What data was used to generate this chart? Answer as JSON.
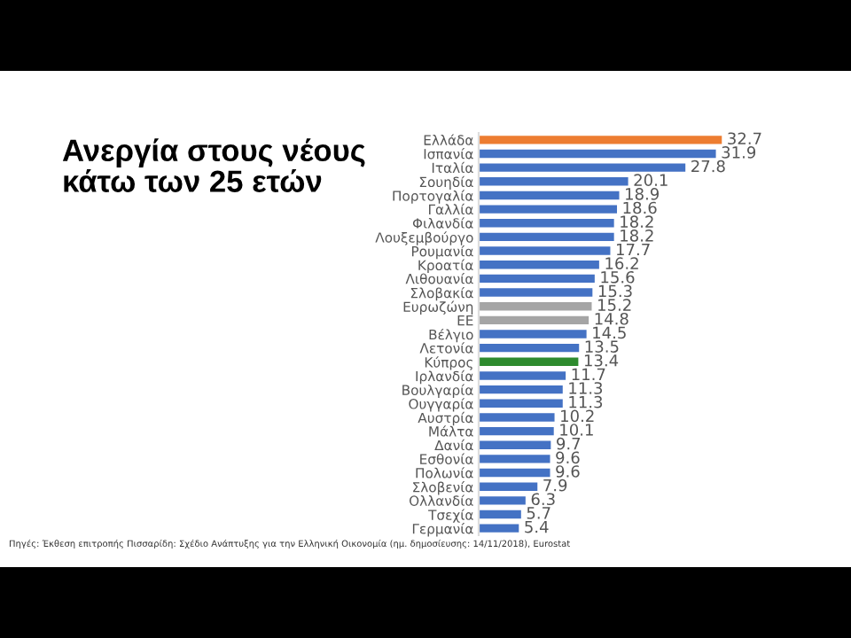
{
  "chart_data": {
    "type": "bar",
    "orientation": "horizontal",
    "title": "Ανεργία στους νέους\nκάτω των 25 ετών",
    "categories": [
      "Ελλάδα",
      "Ισπανία",
      "Ιταλία",
      "Σουηδία",
      "Πορτογαλία",
      "Γαλλία",
      "Φιλανδία",
      "Λουξεμβούργο",
      "Ρουμανία",
      "Κροατία",
      "Λιθουανία",
      "Σλοβακία",
      "Ευρωζώνη",
      "ΕΕ",
      "Βέλγιο",
      "Λετονία",
      "Κύπρος",
      "Ιρλανδία",
      "Βουλγαρία",
      "Ουγγαρία",
      "Αυστρία",
      "Μάλτα",
      "Δανία",
      "Εσθονία",
      "Πολωνία",
      "Σλοβενία",
      "Ολλανδία",
      "Τσεχία",
      "Γερμανία"
    ],
    "values": [
      32.7,
      31.9,
      27.8,
      20.1,
      18.9,
      18.6,
      18.2,
      18.2,
      17.7,
      16.2,
      15.6,
      15.3,
      15.2,
      14.8,
      14.5,
      13.5,
      13.4,
      11.7,
      11.3,
      11.3,
      10.2,
      10.1,
      9.7,
      9.6,
      9.6,
      7.9,
      6.3,
      5.7,
      5.4
    ],
    "colors": [
      "#ed7d31",
      "#4472c4",
      "#4472c4",
      "#4472c4",
      "#4472c4",
      "#4472c4",
      "#4472c4",
      "#4472c4",
      "#4472c4",
      "#4472c4",
      "#4472c4",
      "#4472c4",
      "#a5a5a5",
      "#a5a5a5",
      "#4472c4",
      "#4472c4",
      "#2e8b2e",
      "#4472c4",
      "#4472c4",
      "#4472c4",
      "#4472c4",
      "#4472c4",
      "#4472c4",
      "#4472c4",
      "#4472c4",
      "#4472c4",
      "#4472c4",
      "#4472c4",
      "#4472c4"
    ],
    "data_labels": true,
    "tick_labels": "y",
    "grid": false,
    "legend": false,
    "annotations": [
      "Πηγές: Έκθεση επιτροπής Πισσαρίδη: Σχέδιο Ανάπτυξης για την Ελληνική Οικονομία (ημ. δημοσίευσης: 14/11/2018), Eurostat"
    ]
  }
}
